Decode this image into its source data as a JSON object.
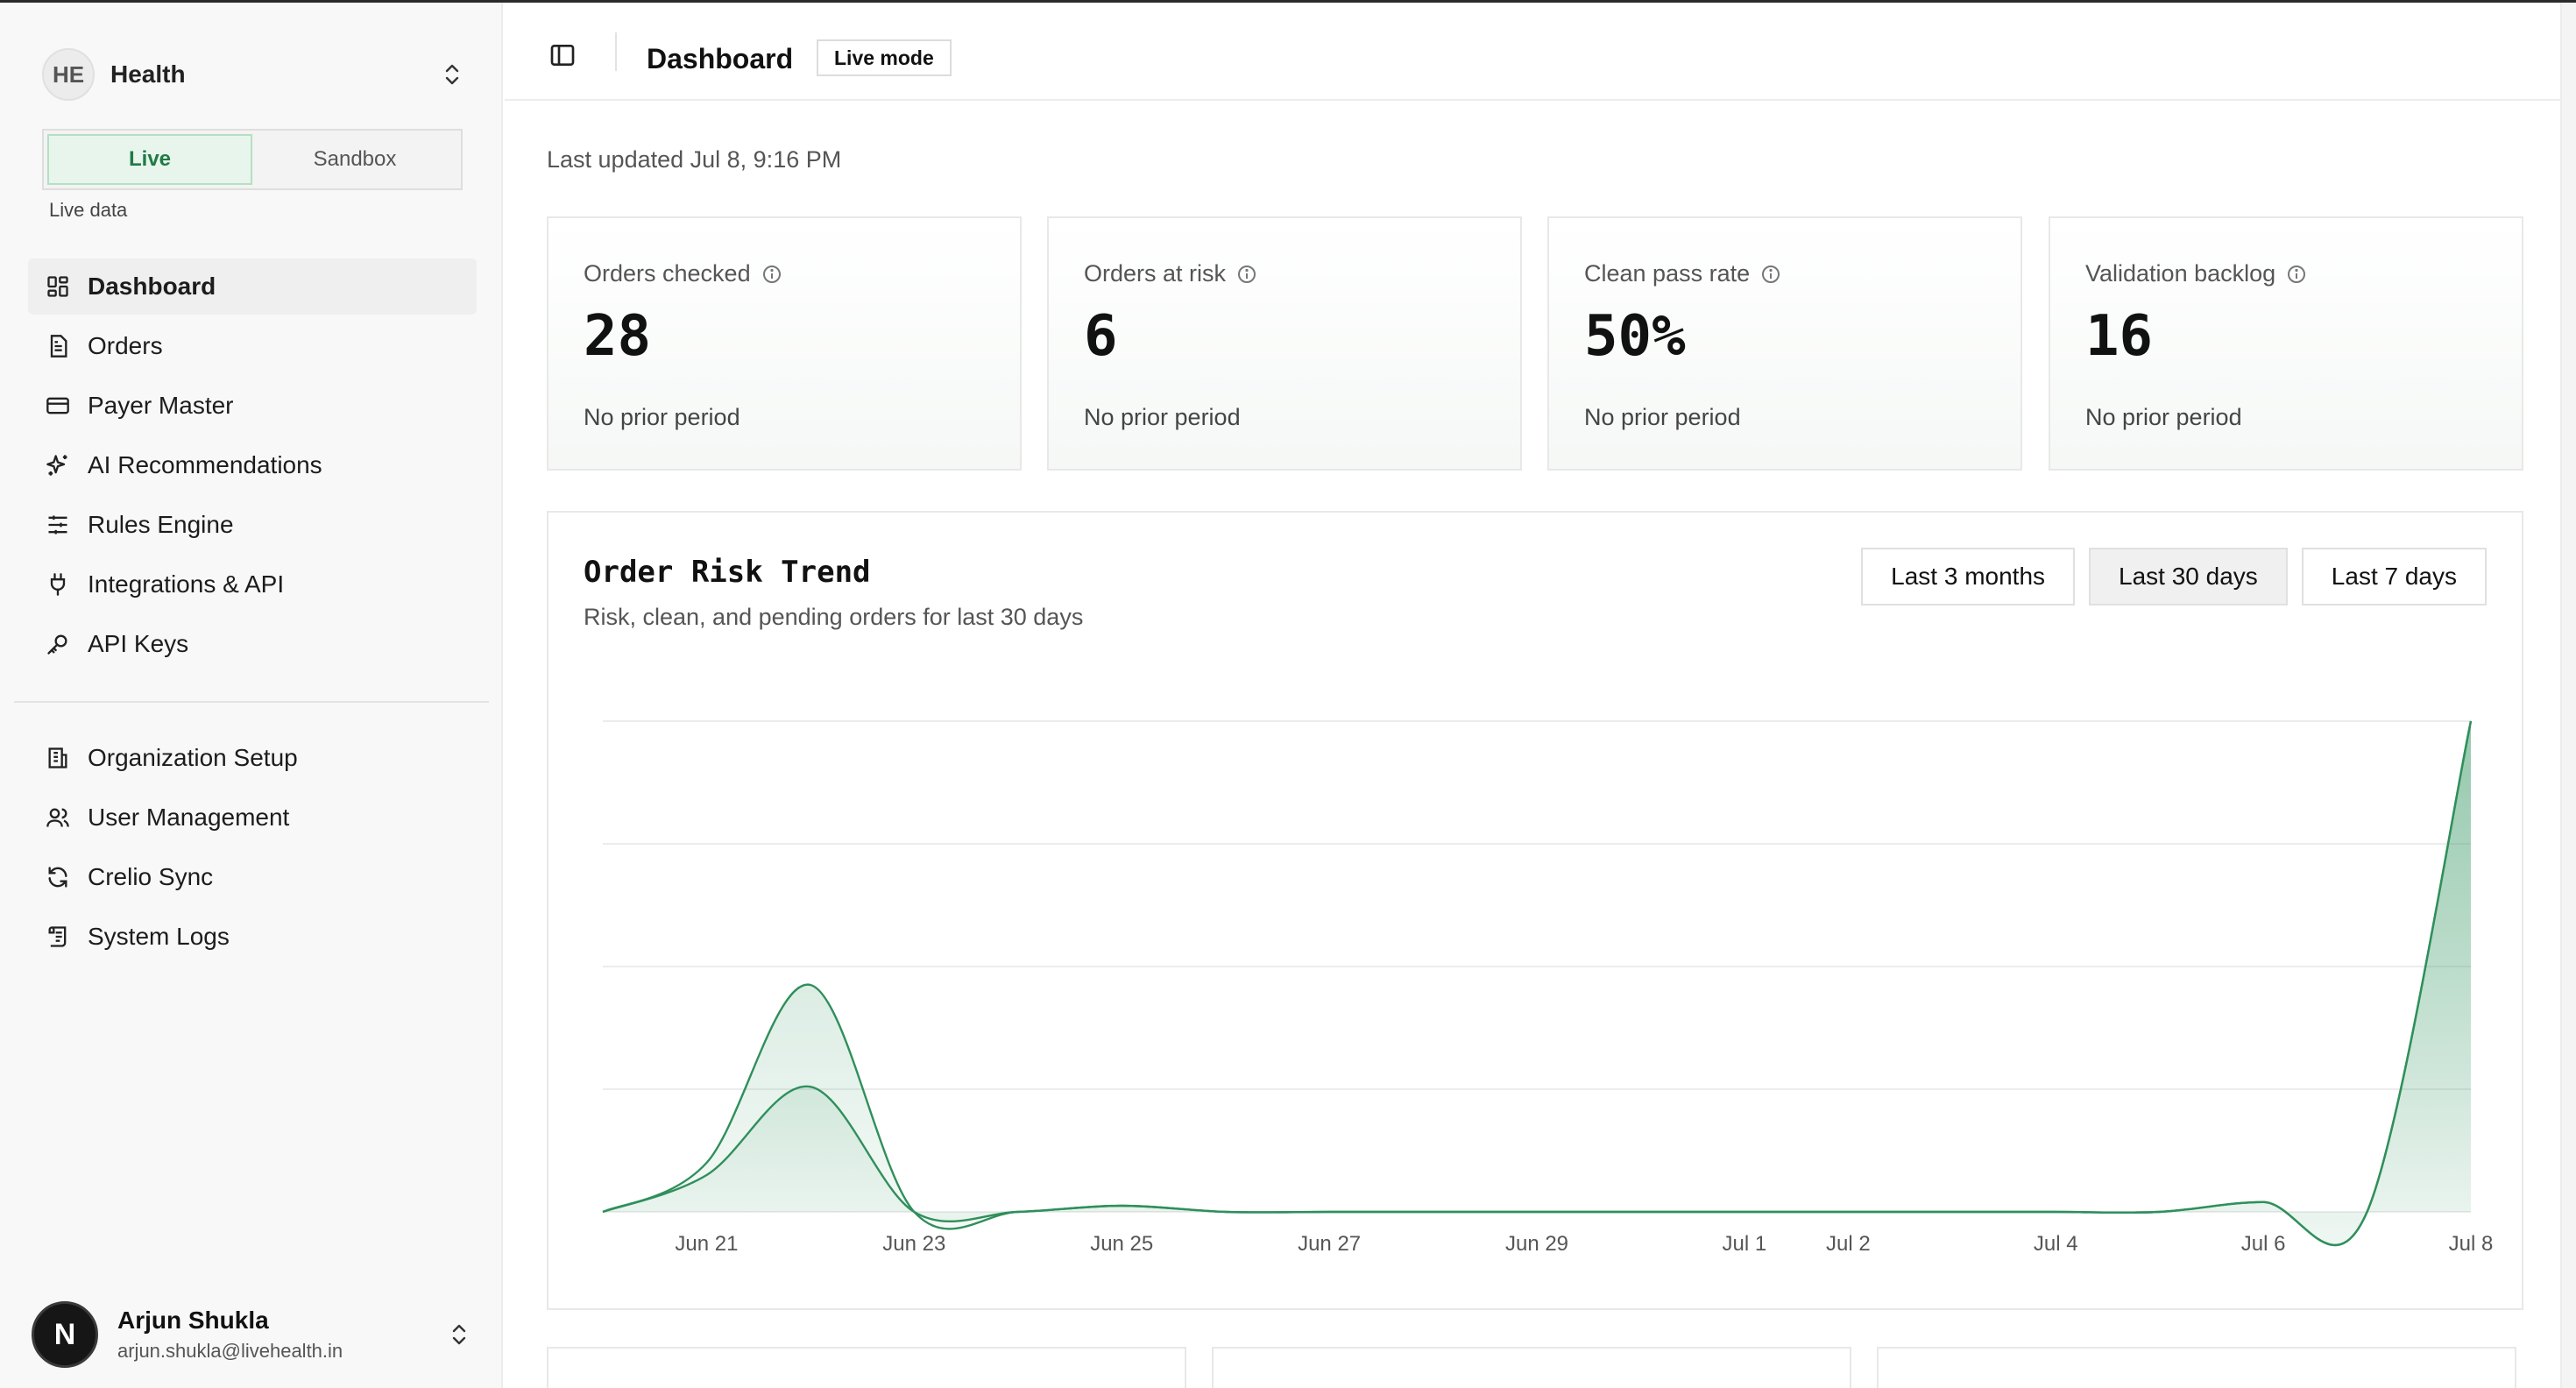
{
  "sidebar": {
    "org": {
      "initials": "HE",
      "name": "Health"
    },
    "mode": {
      "live_label": "Live",
      "sandbox_label": "Sandbox",
      "caption": "Live data"
    },
    "primary_items": [
      {
        "label": "Dashboard",
        "icon": "grid-icon",
        "active": true
      },
      {
        "label": "Orders",
        "icon": "document-icon"
      },
      {
        "label": "Payer Master",
        "icon": "card-icon"
      },
      {
        "label": "AI Recommendations",
        "icon": "sparkles-icon"
      },
      {
        "label": "Rules Engine",
        "icon": "sliders-icon"
      },
      {
        "label": "Integrations & API",
        "icon": "plug-icon"
      },
      {
        "label": "API Keys",
        "icon": "key-icon"
      }
    ],
    "secondary_items": [
      {
        "label": "Organization Setup",
        "icon": "building-icon"
      },
      {
        "label": "User Management",
        "icon": "users-icon"
      },
      {
        "label": "Crelio Sync",
        "icon": "sync-icon"
      },
      {
        "label": "System Logs",
        "icon": "scroll-icon"
      }
    ],
    "user": {
      "initial": "N",
      "name": "Arjun Shukla",
      "email": "arjun.shukla@livehealth.in"
    }
  },
  "header": {
    "title": "Dashboard",
    "badge": "Live mode"
  },
  "last_updated": "Last updated Jul 8, 9:16 PM",
  "stats": [
    {
      "label": "Orders checked",
      "value": "28",
      "foot": "No prior period"
    },
    {
      "label": "Orders at risk",
      "value": "6",
      "foot": "No prior period"
    },
    {
      "label": "Clean pass rate",
      "value": "50%",
      "foot": "No prior period"
    },
    {
      "label": "Validation backlog",
      "value": "16",
      "foot": "No prior period"
    }
  ],
  "chart": {
    "title": "Order Risk Trend",
    "subtitle": "Risk, clean, and pending orders for last 30 days",
    "ranges": [
      {
        "label": "Last 3 months",
        "active": false
      },
      {
        "label": "Last 30 days",
        "active": true
      },
      {
        "label": "Last 7 days",
        "active": false
      }
    ]
  },
  "chart_data": {
    "type": "area",
    "x": [
      "Jun 20",
      "Jun 21",
      "Jun 22",
      "Jun 23",
      "Jun 24",
      "Jun 25",
      "Jun 26",
      "Jun 27",
      "Jun 28",
      "Jun 29",
      "Jun 30",
      "Jul 1",
      "Jul 2",
      "Jul 3",
      "Jul 4",
      "Jul 5",
      "Jul 6",
      "Jul 7",
      "Jul 8"
    ],
    "tick_labels": [
      "Jun 21",
      "Jun 23",
      "Jun 25",
      "Jun 27",
      "Jun 29",
      "Jul 1",
      "Jul 2",
      "Jul 4",
      "Jul 6",
      "Jul 8"
    ],
    "ylim": [
      0,
      4
    ],
    "grid": true,
    "colors": {
      "line": "#2f8f5b",
      "fill": "#3c9a67"
    },
    "series": [
      {
        "values": [
          0,
          0.4,
          1.85,
          0,
          0,
          0.05,
          0,
          0,
          0,
          0,
          0,
          0,
          0,
          0,
          0,
          0,
          0.08,
          0,
          4
        ]
      },
      {
        "values": [
          0,
          0.3,
          1.02,
          0,
          0,
          0.05,
          0,
          0,
          0,
          0,
          0,
          0,
          0,
          0,
          0,
          0,
          0.08,
          0,
          4
        ]
      }
    ]
  },
  "bottom_cards": 3
}
